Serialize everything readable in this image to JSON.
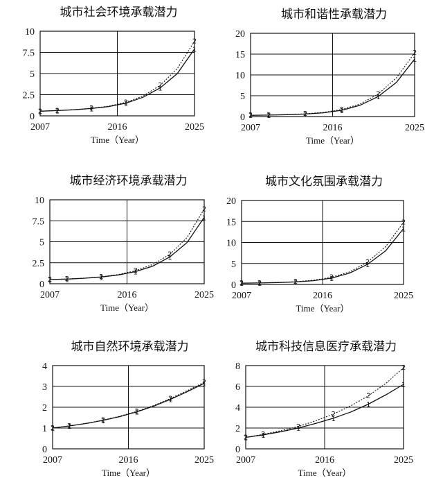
{
  "chart_data": [
    {
      "type": "line",
      "title": "城市社会环境承载潜力",
      "xlabel": "Time（Year）",
      "xlim": [
        2007,
        2025
      ],
      "ylim": [
        0,
        10
      ],
      "xticks": [
        "2007",
        "2016",
        "2025"
      ],
      "yticks": [
        "0",
        "2.5",
        "5",
        "7.5",
        "10"
      ],
      "grid": true,
      "series": [
        {
          "name": "1",
          "style": "solid",
          "x": [
            2007,
            2009,
            2011,
            2013,
            2015,
            2017,
            2019,
            2021,
            2023,
            2025
          ],
          "y": [
            0.55,
            0.62,
            0.72,
            0.88,
            1.1,
            1.5,
            2.2,
            3.3,
            5.0,
            7.9
          ]
        },
        {
          "name": "2",
          "style": "dotted",
          "x": [
            2007,
            2009,
            2011,
            2013,
            2015,
            2017,
            2019,
            2021,
            2023,
            2025
          ],
          "y": [
            0.55,
            0.63,
            0.74,
            0.9,
            1.15,
            1.6,
            2.35,
            3.6,
            5.6,
            8.8
          ]
        }
      ]
    },
    {
      "type": "line",
      "title": "城市和谐性承载潜力",
      "xlabel": "Time（Year）",
      "xlim": [
        2007,
        2025
      ],
      "ylim": [
        0,
        20
      ],
      "xticks": [
        "2007",
        "2016",
        "2025"
      ],
      "yticks": [
        "0",
        "5",
        "10",
        "15",
        "20"
      ],
      "grid": true,
      "series": [
        {
          "name": "1",
          "style": "solid",
          "x": [
            2007,
            2009,
            2011,
            2013,
            2015,
            2017,
            2019,
            2021,
            2023,
            2025
          ],
          "y": [
            0.3,
            0.35,
            0.45,
            0.6,
            0.9,
            1.5,
            2.7,
            4.8,
            8.2,
            13.8
          ]
        },
        {
          "name": "2",
          "style": "dotted",
          "x": [
            2007,
            2009,
            2011,
            2013,
            2015,
            2017,
            2019,
            2021,
            2023,
            2025
          ],
          "y": [
            0.3,
            0.36,
            0.47,
            0.65,
            1.0,
            1.7,
            3.0,
            5.4,
            9.3,
            15.3
          ]
        }
      ]
    },
    {
      "type": "line",
      "title": "城市经济环境承载潜力",
      "xlabel": "Time（Year）",
      "xlim": [
        2007,
        2025
      ],
      "ylim": [
        0,
        10
      ],
      "xticks": [
        "2007",
        "2016",
        "2025"
      ],
      "yticks": [
        "0",
        "2.5",
        "5",
        "7.5",
        "10"
      ],
      "grid": true,
      "series": [
        {
          "name": "1",
          "style": "solid",
          "x": [
            2007,
            2009,
            2011,
            2013,
            2015,
            2017,
            2019,
            2021,
            2023,
            2025
          ],
          "y": [
            0.5,
            0.55,
            0.65,
            0.8,
            1.05,
            1.45,
            2.1,
            3.2,
            4.9,
            7.9
          ]
        },
        {
          "name": "2",
          "style": "dotted",
          "x": [
            2007,
            2009,
            2011,
            2013,
            2015,
            2017,
            2019,
            2021,
            2023,
            2025
          ],
          "y": [
            0.5,
            0.56,
            0.67,
            0.83,
            1.1,
            1.55,
            2.3,
            3.5,
            5.5,
            8.9
          ]
        }
      ]
    },
    {
      "type": "line",
      "title": "城市文化氛围承载潜力",
      "xlabel": "Time（Year）",
      "xlim": [
        2007,
        2025
      ],
      "ylim": [
        0,
        20
      ],
      "xticks": [
        "2007",
        "2016",
        "2025"
      ],
      "yticks": [
        "0",
        "5",
        "10",
        "15",
        "20"
      ],
      "grid": true,
      "series": [
        {
          "name": "1",
          "style": "solid",
          "x": [
            2007,
            2009,
            2011,
            2013,
            2015,
            2017,
            2019,
            2021,
            2023,
            2025
          ],
          "y": [
            0.3,
            0.35,
            0.45,
            0.6,
            0.9,
            1.5,
            2.7,
            4.8,
            8.0,
            13.3
          ]
        },
        {
          "name": "2",
          "style": "dotted",
          "x": [
            2007,
            2009,
            2011,
            2013,
            2015,
            2017,
            2019,
            2021,
            2023,
            2025
          ],
          "y": [
            0.3,
            0.36,
            0.47,
            0.65,
            1.0,
            1.7,
            3.0,
            5.3,
            9.0,
            14.8
          ]
        }
      ]
    },
    {
      "type": "line",
      "title": "城市自然环境承载潜力",
      "xlabel": "Time（Year）",
      "xlim": [
        2007,
        2025
      ],
      "ylim": [
        0,
        4
      ],
      "xticks": [
        "2007",
        "2016",
        "2025"
      ],
      "yticks": [
        "0",
        "1",
        "2",
        "3",
        "4"
      ],
      "grid": true,
      "series": [
        {
          "name": "1",
          "style": "solid",
          "x": [
            2007,
            2009,
            2011,
            2013,
            2015,
            2017,
            2019,
            2021,
            2023,
            2025
          ],
          "y": [
            1.0,
            1.1,
            1.22,
            1.37,
            1.55,
            1.78,
            2.05,
            2.38,
            2.75,
            3.15
          ]
        },
        {
          "name": "2",
          "style": "dotted",
          "x": [
            2007,
            2009,
            2011,
            2013,
            2015,
            2017,
            2019,
            2021,
            2023,
            2025
          ],
          "y": [
            1.0,
            1.1,
            1.23,
            1.38,
            1.57,
            1.8,
            2.08,
            2.42,
            2.8,
            3.2
          ]
        }
      ]
    },
    {
      "type": "line",
      "title": "城市科技信息医疗承载潜力",
      "xlabel": "Time（Year）",
      "xlim": [
        2007,
        2025
      ],
      "ylim": [
        0,
        8
      ],
      "xticks": [
        "2007",
        "2016",
        "2025"
      ],
      "yticks": [
        "0",
        "2",
        "4",
        "6",
        "8"
      ],
      "grid": true,
      "series": [
        {
          "name": "1",
          "style": "solid",
          "x": [
            2007,
            2009,
            2011,
            2013,
            2015,
            2017,
            2019,
            2021,
            2023,
            2025
          ],
          "y": [
            1.1,
            1.35,
            1.65,
            2.0,
            2.45,
            2.95,
            3.55,
            4.3,
            5.2,
            6.2
          ]
        },
        {
          "name": "2",
          "style": "dotted",
          "x": [
            2007,
            2009,
            2011,
            2013,
            2015,
            2017,
            2019,
            2021,
            2023,
            2025
          ],
          "y": [
            1.1,
            1.4,
            1.75,
            2.15,
            2.7,
            3.35,
            4.15,
            5.1,
            6.3,
            7.8
          ]
        }
      ]
    }
  ]
}
